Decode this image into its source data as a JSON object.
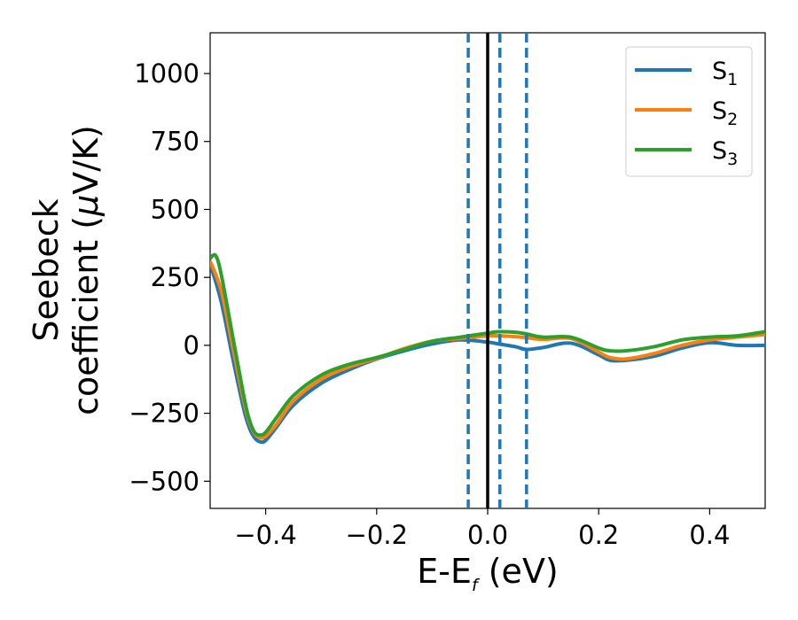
{
  "chart_data": {
    "type": "line",
    "title": "",
    "xlabel": {
      "main": "E-E",
      "sub": "f",
      "tail": " (eV)"
    },
    "ylabel": {
      "line1": "Seebeck",
      "line2_text": "coefficient  (",
      "line2_mu": "μ",
      "line2_tail": "V/K)"
    },
    "xlim": [
      -0.5,
      0.5
    ],
    "ylim": [
      -600,
      1150
    ],
    "xticks": [
      -0.4,
      -0.2,
      0.0,
      0.2,
      0.4
    ],
    "xtick_labels": [
      "−0.4",
      "−0.2",
      "0.0",
      "0.2",
      "0.4"
    ],
    "yticks": [
      -500,
      -250,
      0,
      250,
      500,
      750,
      1000
    ],
    "ytick_labels": [
      "−500",
      "−250",
      "0",
      "250",
      "500",
      "750",
      "1000"
    ],
    "grid": false,
    "legend_position": "top-right",
    "fermi_line": {
      "x": 0.0,
      "color": "#000000",
      "style": "solid"
    },
    "dashed_lines": {
      "x": [
        -0.035,
        0.022,
        0.07
      ],
      "color": "#1f77b4",
      "style": "dashed"
    },
    "series": [
      {
        "name": "S",
        "sub": "1",
        "color": "#1f77b4",
        "x": [
          -0.5,
          -0.48,
          -0.46,
          -0.44,
          -0.43,
          -0.42,
          -0.41,
          -0.4,
          -0.38,
          -0.35,
          -0.3,
          -0.25,
          -0.2,
          -0.15,
          -0.1,
          -0.05,
          0.0,
          0.02,
          0.05,
          0.07,
          0.1,
          0.15,
          0.2,
          0.22,
          0.25,
          0.3,
          0.35,
          0.4,
          0.45,
          0.5
        ],
        "y": [
          300,
          160,
          -40,
          -230,
          -300,
          -340,
          -355,
          -350,
          -300,
          -220,
          -140,
          -90,
          -50,
          -20,
          5,
          20,
          12,
          5,
          -5,
          -15,
          -8,
          8,
          -35,
          -55,
          -55,
          -40,
          -10,
          10,
          0,
          0
        ]
      },
      {
        "name": "S",
        "sub": "2",
        "color": "#ff7f0e",
        "x": [
          -0.5,
          -0.48,
          -0.46,
          -0.44,
          -0.43,
          -0.42,
          -0.41,
          -0.4,
          -0.38,
          -0.35,
          -0.3,
          -0.25,
          -0.2,
          -0.15,
          -0.1,
          -0.05,
          0.0,
          0.02,
          0.05,
          0.07,
          0.1,
          0.15,
          0.2,
          0.22,
          0.25,
          0.3,
          0.35,
          0.4,
          0.45,
          0.5
        ],
        "y": [
          310,
          200,
          0,
          -200,
          -280,
          -325,
          -340,
          -335,
          -290,
          -205,
          -125,
          -80,
          -48,
          -12,
          15,
          25,
          35,
          35,
          32,
          28,
          22,
          25,
          -25,
          -45,
          -50,
          -30,
          0,
          20,
          30,
          40
        ]
      },
      {
        "name": "S",
        "sub": "3",
        "color": "#2ca02c",
        "x": [
          -0.5,
          -0.49,
          -0.48,
          -0.46,
          -0.44,
          -0.43,
          -0.42,
          -0.41,
          -0.4,
          -0.38,
          -0.35,
          -0.3,
          -0.25,
          -0.2,
          -0.15,
          -0.1,
          -0.05,
          0.0,
          0.02,
          0.05,
          0.07,
          0.1,
          0.15,
          0.2,
          0.22,
          0.25,
          0.3,
          0.35,
          0.4,
          0.45,
          0.5
        ],
        "y": [
          320,
          330,
          260,
          40,
          -180,
          -270,
          -320,
          -330,
          -320,
          -265,
          -185,
          -110,
          -70,
          -45,
          -15,
          15,
          30,
          45,
          50,
          48,
          42,
          30,
          30,
          -10,
          -20,
          -20,
          -5,
          20,
          30,
          35,
          50
        ]
      }
    ]
  }
}
